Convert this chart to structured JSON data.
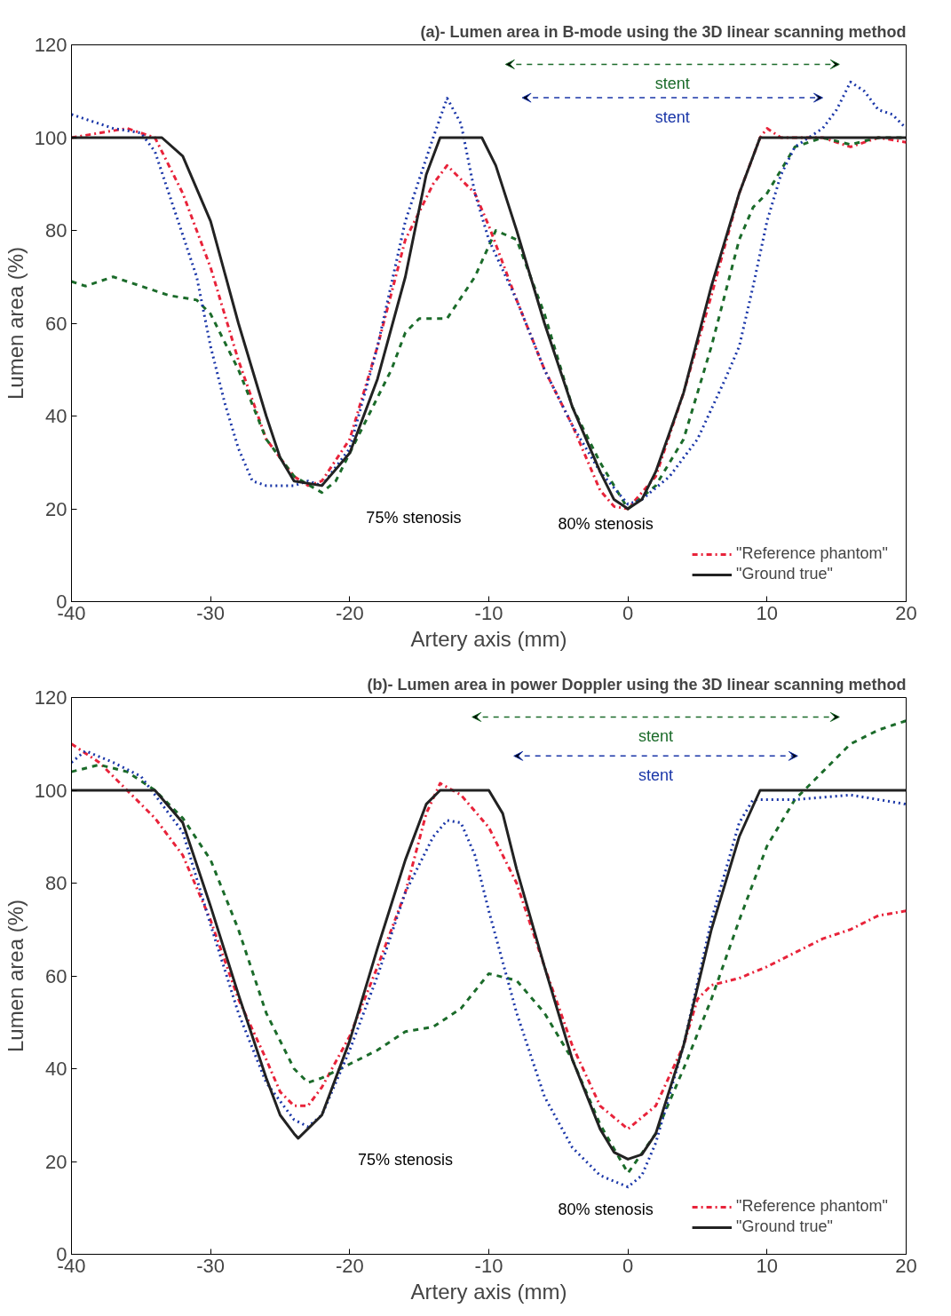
{
  "chart_data": [
    {
      "type": "line",
      "title": "(a)- Lumen area in B-mode using the 3D linear scanning method",
      "xlabel": "Artery axis (mm)",
      "ylabel": "Lumen area (%)",
      "xlim": [
        -40,
        20
      ],
      "ylim": [
        0,
        120
      ],
      "xticks": [
        -40,
        -30,
        -20,
        -10,
        0,
        10,
        20
      ],
      "yticks": [
        0,
        20,
        40,
        60,
        80,
        100,
        120
      ],
      "grid": false,
      "legend": "bottom right",
      "marker": "none",
      "annotations": [
        "stent",
        "stent",
        "75% stenosis",
        "80% stenosis"
      ],
      "series": [
        {
          "name": "\"Reference phantom\"",
          "color": "#e8233a",
          "line_style": "dashdot",
          "x": [
            -40,
            -36,
            -34,
            -32,
            -30,
            -28,
            -26,
            -24,
            -23,
            -22,
            -20,
            -18,
            -16,
            -14,
            -13,
            -11,
            -10,
            -8,
            -6,
            -4,
            -2,
            -1,
            0,
            2,
            4,
            6,
            8,
            9.5,
            10,
            11,
            14,
            16,
            18,
            20
          ],
          "values": [
            100,
            102,
            100,
            88,
            72,
            52,
            35,
            27,
            25,
            26,
            35,
            55,
            78,
            90,
            94,
            88,
            81,
            65,
            50,
            38,
            24,
            20.5,
            20,
            27,
            45,
            66,
            88,
            100,
            102,
            100,
            100,
            98,
            100,
            99
          ]
        },
        {
          "color": "#1b6b2a",
          "line_style": "dashed",
          "x": [
            -40,
            -39,
            -37,
            -35,
            -33,
            -31,
            -30,
            -28,
            -26,
            -24,
            -22,
            -21,
            -19,
            -17,
            -16,
            -15,
            -13,
            -11,
            -9.5,
            -8,
            -6,
            -4,
            -2,
            0,
            2,
            4,
            6,
            8,
            9,
            10,
            12,
            14,
            16,
            18,
            20
          ],
          "values": [
            69,
            68,
            70,
            68,
            66,
            65,
            62,
            50,
            35,
            27,
            23.5,
            26,
            38,
            50,
            58,
            61,
            61,
            70,
            80,
            78,
            62,
            42,
            30,
            20,
            25,
            35,
            55,
            78,
            85,
            88,
            98,
            100,
            98.5,
            100,
            100
          ]
        },
        {
          "color": "#1a36a8",
          "line_style": "dotted",
          "x": [
            -40,
            -37,
            -35,
            -34,
            -33,
            -31,
            -30,
            -29,
            -28,
            -27,
            -26,
            -24,
            -23,
            -22,
            -20,
            -18,
            -16,
            -14,
            -13,
            -12,
            -11,
            -10,
            -8,
            -6,
            -4,
            -2,
            0,
            1,
            3,
            5,
            7,
            8,
            9,
            10,
            11,
            12,
            14,
            15,
            16,
            17,
            18,
            19,
            20
          ],
          "values": [
            105,
            102,
            101,
            97,
            88,
            70,
            55,
            43,
            33,
            26,
            25,
            25,
            26,
            25,
            33,
            55,
            82,
            100,
            108.5,
            103,
            88,
            78,
            65,
            50,
            38,
            28,
            21,
            22,
            27,
            35,
            48,
            55,
            68,
            82,
            92,
            98,
            102,
            106,
            112,
            110,
            106,
            105,
            102
          ]
        },
        {
          "name": "\"Ground true\"",
          "color": "#222222",
          "line_style": "solid",
          "x": [
            -40,
            -33.5,
            -32,
            -30,
            -28,
            -26,
            -25,
            -24,
            -22,
            -20,
            -18,
            -16,
            -14.5,
            -13.5,
            -10.5,
            -9.5,
            -8,
            -6,
            -4,
            -2,
            -1,
            0,
            1,
            2,
            4,
            6,
            8,
            9.5,
            20
          ],
          "values": [
            100,
            100,
            96,
            82,
            60,
            40,
            31,
            26,
            25,
            32,
            48,
            70,
            92,
            100,
            100,
            94,
            80,
            60,
            42,
            28,
            22,
            20,
            22,
            28,
            45,
            68,
            88,
            100,
            100
          ]
        }
      ]
    },
    {
      "type": "line",
      "title": "(b)- Lumen area in power Doppler using the 3D linear scanning method",
      "xlabel": "Artery axis (mm)",
      "ylabel": "Lumen area (%)",
      "xlim": [
        -40,
        20
      ],
      "ylim": [
        0,
        120
      ],
      "xticks": [
        -40,
        -30,
        -20,
        -10,
        0,
        10,
        20
      ],
      "yticks": [
        0,
        20,
        40,
        60,
        80,
        100,
        120
      ],
      "grid": false,
      "legend": "bottom right",
      "marker": "none",
      "annotations": [
        "stent",
        "stent",
        "75% stenosis",
        "80% stenosis"
      ],
      "series": [
        {
          "name": "\"Reference phantom\"",
          "color": "#e8233a",
          "line_style": "dashdot",
          "x": [
            -40,
            -38,
            -36,
            -34,
            -32,
            -30,
            -28,
            -26,
            -25,
            -24,
            -23,
            -22,
            -20,
            -18,
            -16,
            -14.5,
            -13.5,
            -12,
            -10,
            -8,
            -6,
            -4,
            -2,
            0,
            2,
            4,
            5,
            6,
            8,
            10,
            12,
            14,
            16,
            18,
            20
          ],
          "values": [
            110,
            106,
            100,
            94,
            86,
            72,
            55,
            42,
            35,
            32,
            32,
            36,
            47,
            62,
            78,
            95,
            101.5,
            99,
            92,
            80,
            62,
            45,
            32,
            27,
            32,
            45,
            55,
            58,
            59.5,
            62,
            65,
            68,
            70,
            73,
            74
          ]
        },
        {
          "color": "#1b6b2a",
          "line_style": "dashed",
          "x": [
            -40,
            -38,
            -36,
            -34,
            -32,
            -30,
            -28,
            -26,
            -24,
            -23,
            -22,
            -20,
            -18,
            -16,
            -14,
            -12,
            -10,
            -8,
            -6,
            -4,
            -2,
            0,
            2,
            4,
            6,
            8,
            10,
            12,
            14,
            16,
            18,
            20
          ],
          "values": [
            104,
            105.5,
            104,
            100,
            94,
            85,
            70,
            52,
            40,
            37,
            38,
            41,
            44,
            48,
            49,
            53,
            60.5,
            59,
            52,
            42,
            28,
            17.5,
            26,
            40,
            55,
            72,
            88,
            98,
            104,
            110,
            113,
            115
          ]
        },
        {
          "color": "#1a36a8",
          "line_style": "dotted",
          "x": [
            -40,
            -39,
            -37,
            -35,
            -34,
            -32,
            -30,
            -28,
            -26,
            -24,
            -23,
            -22,
            -20,
            -18,
            -16,
            -14,
            -13,
            -12,
            -11,
            -10,
            -8,
            -6,
            -4,
            -2,
            0,
            1,
            2,
            4,
            6,
            8,
            9,
            12,
            16,
            18,
            20
          ],
          "values": [
            106,
            108.5,
            106,
            103,
            99,
            91,
            71,
            52,
            37,
            29,
            27.5,
            30,
            44,
            60,
            78,
            90,
            93.5,
            93,
            86,
            74,
            52,
            34,
            23,
            17,
            14.5,
            17,
            24,
            45,
            72,
            93,
            98,
            98,
            99,
            98,
            97
          ]
        },
        {
          "name": "\"Ground true\"",
          "color": "#222222",
          "line_style": "solid",
          "x": [
            -40,
            -34,
            -32,
            -30,
            -28,
            -26,
            -25,
            -24,
            -23.7,
            -22,
            -20,
            -18,
            -16,
            -14.5,
            -13.5,
            -10,
            -9,
            -8,
            -6,
            -4,
            -2,
            -1,
            0,
            1,
            2,
            4,
            6,
            8,
            9.5,
            20
          ],
          "values": [
            100,
            100,
            93,
            75,
            56,
            38,
            30,
            26,
            25,
            30,
            46,
            66,
            85,
            97,
            100,
            100,
            95,
            83,
            62,
            42,
            27,
            22,
            20.5,
            21.5,
            26,
            45,
            70,
            90,
            100,
            100
          ]
        }
      ]
    }
  ]
}
